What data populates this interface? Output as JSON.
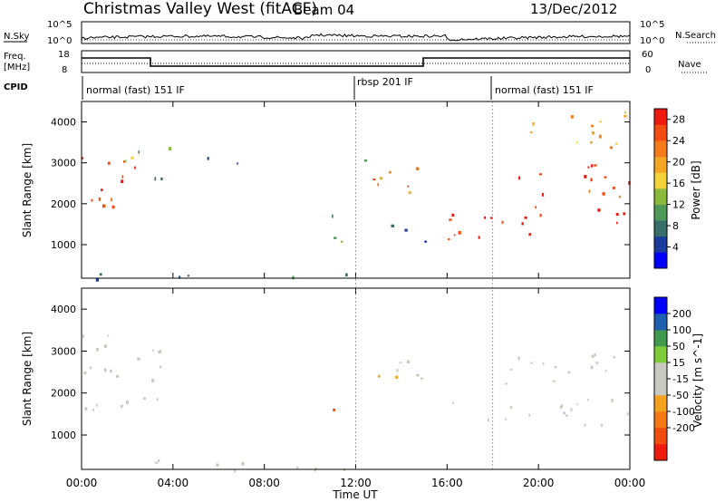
{
  "header": {
    "title": "Christmas Valley West (fitACF)",
    "beam": "Beam 04",
    "date": "13/Dec/2012"
  },
  "strip_labels": {
    "nsky": "N.Sky",
    "nsearch": "N.Search",
    "freq_line1": "Freq.",
    "freq_line2": "[MHz]",
    "nave": "Nave",
    "cpid": "CPID"
  },
  "strip_ticks": {
    "noise_left": [
      "10^5",
      "10^0"
    ],
    "noise_right": [
      "10^5",
      "10^0"
    ],
    "freq_left": [
      "18",
      "8"
    ],
    "freq_right": [
      "60",
      "0"
    ]
  },
  "cpid_modes": [
    {
      "label": "normal (fast) 151 IF",
      "start_hour": 0
    },
    {
      "label": "rbsp 201 IF",
      "start_hour": 12
    },
    {
      "label": "normal (fast) 151 IF",
      "start_hour": 18
    }
  ],
  "colors": {
    "power_scale": [
      "#0000ff",
      "#1c3c9c",
      "#3a6e6a",
      "#4f9a58",
      "#8ab93c",
      "#f2d43a",
      "#f5a623",
      "#f47a1a",
      "#f24c12",
      "#ee1a0e"
    ],
    "velocity_scale": [
      "#0000ff",
      "#1f5fb0",
      "#3f9a4f",
      "#7ecb3c",
      "#c8c8c0",
      "#c8c8c0",
      "#f4a11e",
      "#f57a14",
      "#f04c10",
      "#ee1a0e"
    ]
  },
  "chart_data": [
    {
      "type": "heatmap",
      "panel": "power",
      "xlabel": "",
      "ylabel": "Slant Range [km]",
      "y_ticks": [
        "1000",
        "2000",
        "3000",
        "4000"
      ],
      "ylim": [
        180,
        4500
      ],
      "x_range_hours": [
        0,
        24
      ],
      "colorbar_label": "Power [dB]",
      "colorbar_ticks": [
        "4",
        "8",
        "12",
        "16",
        "20",
        "24",
        "28"
      ],
      "colorbar_range": [
        0,
        30
      ],
      "regions": [
        {
          "t0": 0.0,
          "t1": 2.5,
          "r0": 1300,
          "r1": 3300,
          "level": 26
        },
        {
          "t0": 1.6,
          "t1": 2.7,
          "r0": 2600,
          "r1": 3400,
          "level": 14
        },
        {
          "t0": 2.7,
          "t1": 3.9,
          "r0": 2500,
          "r1": 3500,
          "level": 10
        },
        {
          "t0": 5.5,
          "t1": 7.2,
          "r0": 2900,
          "r1": 3300,
          "level": 6
        },
        {
          "t0": 10.0,
          "t1": 11.5,
          "r0": 1000,
          "r1": 1800,
          "level": 10
        },
        {
          "t0": 11.6,
          "t1": 12.4,
          "r0": 2800,
          "r1": 3300,
          "level": 12
        },
        {
          "t0": 12.4,
          "t1": 15.0,
          "r0": 2000,
          "r1": 2900,
          "level": 22
        },
        {
          "t0": 12.8,
          "t1": 15.2,
          "r0": 1000,
          "r1": 1500,
          "level": 6
        },
        {
          "t0": 16.0,
          "t1": 24.0,
          "r0": 1150,
          "r1": 1950,
          "level": 28
        },
        {
          "t0": 18.0,
          "t1": 24.0,
          "r0": 2200,
          "r1": 3000,
          "level": 26
        },
        {
          "t0": 19.5,
          "t1": 24.0,
          "r0": 3300,
          "r1": 4300,
          "level": 20
        },
        {
          "t0": 0.0,
          "t1": 12.0,
          "r0": 180,
          "r1": 350,
          "level": 8
        }
      ]
    },
    {
      "type": "heatmap",
      "panel": "velocity",
      "xlabel": "Time UT",
      "ylabel": "Slant Range [km]",
      "y_ticks": [
        "1000",
        "2000",
        "3000",
        "4000"
      ],
      "ylim": [
        180,
        4500
      ],
      "x_range_hours": [
        0,
        24
      ],
      "x_tick_labels": [
        "00:00",
        "04:00",
        "08:00",
        "12:00",
        "16:00",
        "20:00",
        "00:00"
      ],
      "colorbar_label": "Velocity [m s^-1]",
      "colorbar_ticks": [
        "200",
        "100",
        "50",
        "15",
        "-15",
        "-50",
        "-100",
        "-200"
      ],
      "colorbar_range": [
        -250,
        250
      ],
      "regions": [
        {
          "t0": 0.0,
          "t1": 3.9,
          "r0": 1300,
          "r1": 3400,
          "v": 0
        },
        {
          "t0": 10.4,
          "t1": 11.1,
          "r0": 1000,
          "r1": 1700,
          "v": -150
        },
        {
          "t0": 12.4,
          "t1": 15.0,
          "r0": 1800,
          "r1": 2800,
          "v": -40
        },
        {
          "t0": 16.0,
          "t1": 24.0,
          "r0": 1200,
          "r1": 1900,
          "v": 0
        },
        {
          "t0": 18.0,
          "t1": 24.0,
          "r0": 2200,
          "r1": 3000,
          "v": 0
        },
        {
          "t0": 3.0,
          "t1": 9.0,
          "r0": 180,
          "r1": 500,
          "v": 30
        },
        {
          "t0": 9.0,
          "t1": 12.0,
          "r0": 180,
          "r1": 700,
          "v": -40
        }
      ]
    }
  ]
}
